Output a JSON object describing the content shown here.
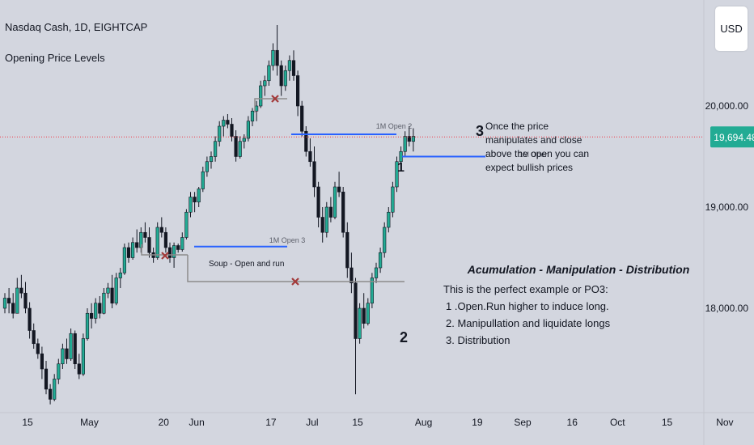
{
  "header": {
    "title": "Nasdaq Cash, 1D, EIGHTCAP",
    "indicator": "Opening Price Levels",
    "currency": "USD"
  },
  "colors": {
    "up": "#22ab94",
    "down": "#131722",
    "level": "#2962ff",
    "pivot": "#8c8c8c",
    "cross": "#a33a3a",
    "price_line": "#f23645",
    "price_badge": "#22ab94",
    "text": "#131722"
  },
  "chart_data": {
    "type": "candlestick",
    "title": "Nasdaq Cash, 1D, EIGHTCAP",
    "ylim": [
      17000,
      20800
    ],
    "y_ticks": [
      {
        "v": 20000,
        "label": "20,000.00"
      },
      {
        "v": 19000,
        "label": "19,000.00"
      },
      {
        "v": 18000,
        "label": "18,000.00"
      }
    ],
    "x_ticks": [
      {
        "i": 0,
        "label": "15"
      },
      {
        "i": 15,
        "label": "May"
      },
      {
        "i": 33,
        "label": "20"
      },
      {
        "i": 41,
        "label": "Jun"
      },
      {
        "i": 59,
        "label": "17"
      },
      {
        "i": 69,
        "label": "Jul"
      },
      {
        "i": 80,
        "label": "15"
      },
      {
        "i": 96,
        "label": "Aug"
      },
      {
        "i": 109,
        "label": "19"
      },
      {
        "i": 120,
        "label": "Sep"
      },
      {
        "i": 132,
        "label": "16"
      },
      {
        "i": 143,
        "label": "Oct"
      },
      {
        "i": 155,
        "label": "15"
      },
      {
        "i": 169,
        "label": "Nov"
      }
    ],
    "last_price": {
      "value": 19694.48,
      "label": "19,694.48"
    },
    "ohlc": [
      [
        18000,
        18150,
        17950,
        18100
      ],
      [
        18100,
        18200,
        17950,
        18050
      ],
      [
        18050,
        18150,
        17900,
        17950
      ],
      [
        17950,
        18300,
        17950,
        18200
      ],
      [
        18200,
        18330,
        18100,
        18150
      ],
      [
        18150,
        18260,
        17950,
        18000
      ],
      [
        18000,
        18060,
        17700,
        17780
      ],
      [
        17780,
        17850,
        17600,
        17650
      ],
      [
        17650,
        17700,
        17500,
        17550
      ],
      [
        17550,
        17620,
        17300,
        17400
      ],
      [
        17400,
        17480,
        17150,
        17200
      ],
      [
        17200,
        17250,
        17050,
        17100
      ],
      [
        17100,
        17350,
        17080,
        17300
      ],
      [
        17300,
        17500,
        17250,
        17450
      ],
      [
        17450,
        17650,
        17400,
        17600
      ],
      [
        17600,
        17700,
        17450,
        17500
      ],
      [
        17500,
        17800,
        17480,
        17750
      ],
      [
        17750,
        17780,
        17400,
        17450
      ],
      [
        17450,
        17550,
        17300,
        17350
      ],
      [
        17350,
        17750,
        17330,
        17700
      ],
      [
        17700,
        18000,
        17680,
        17950
      ],
      [
        17950,
        18050,
        17800,
        17900
      ],
      [
        17900,
        18100,
        17850,
        18050
      ],
      [
        18050,
        18120,
        17900,
        17950
      ],
      [
        17950,
        18200,
        17940,
        18150
      ],
      [
        18150,
        18250,
        18100,
        18200
      ],
      [
        18200,
        18330,
        18000,
        18050
      ],
      [
        18050,
        18350,
        18030,
        18300
      ],
      [
        18300,
        18400,
        18200,
        18350
      ],
      [
        18350,
        18640,
        18330,
        18600
      ],
      [
        18600,
        18650,
        18450,
        18500
      ],
      [
        18500,
        18700,
        18480,
        18650
      ],
      [
        18650,
        18780,
        18550,
        18600
      ],
      [
        18600,
        18800,
        18550,
        18750
      ],
      [
        18750,
        18850,
        18650,
        18700
      ],
      [
        18700,
        18800,
        18500,
        18550
      ],
      [
        18550,
        18600,
        18450,
        18500
      ],
      [
        18500,
        18850,
        18480,
        18800
      ],
      [
        18800,
        18900,
        18700,
        18750
      ],
      [
        18750,
        18800,
        18550,
        18600
      ],
      [
        18600,
        18650,
        18450,
        18500
      ],
      [
        18500,
        18650,
        18400,
        18620
      ],
      [
        18620,
        18640,
        18550,
        18580
      ],
      [
        18580,
        18750,
        18560,
        18700
      ],
      [
        18700,
        18980,
        18680,
        18950
      ],
      [
        18950,
        19150,
        18900,
        19100
      ],
      [
        19100,
        19150,
        18950,
        19050
      ],
      [
        19050,
        19200,
        19000,
        19180
      ],
      [
        19180,
        19400,
        19150,
        19350
      ],
      [
        19350,
        19500,
        19300,
        19450
      ],
      [
        19450,
        19550,
        19380,
        19500
      ],
      [
        19500,
        19700,
        19450,
        19650
      ],
      [
        19650,
        19850,
        19600,
        19800
      ],
      [
        19800,
        19900,
        19700,
        19860
      ],
      [
        19860,
        19920,
        19780,
        19820
      ],
      [
        19820,
        19880,
        19650,
        19700
      ],
      [
        19700,
        19760,
        19450,
        19500
      ],
      [
        19500,
        19700,
        19480,
        19650
      ],
      [
        19650,
        19720,
        19580,
        19680
      ],
      [
        19680,
        19900,
        19650,
        19850
      ],
      [
        19850,
        19980,
        19800,
        19950
      ],
      [
        19950,
        20050,
        19850,
        20000
      ],
      [
        20000,
        20250,
        19980,
        20200
      ],
      [
        20200,
        20300,
        20100,
        20250
      ],
      [
        20250,
        20450,
        20200,
        20400
      ],
      [
        20400,
        20620,
        20350,
        20550
      ],
      [
        20550,
        20800,
        20300,
        20400
      ],
      [
        20400,
        20450,
        20100,
        20200
      ],
      [
        20200,
        20400,
        20150,
        20350
      ],
      [
        20350,
        20500,
        20250,
        20450
      ],
      [
        20450,
        20550,
        20250,
        20300
      ],
      [
        20300,
        20350,
        19900,
        20000
      ],
      [
        20000,
        20050,
        19700,
        19750
      ],
      [
        19750,
        19800,
        19500,
        19550
      ],
      [
        19550,
        19680,
        19400,
        19450
      ],
      [
        19450,
        19600,
        19100,
        19200
      ],
      [
        19200,
        19250,
        18800,
        18900
      ],
      [
        18900,
        19000,
        18650,
        18750
      ],
      [
        18750,
        19050,
        18700,
        19000
      ],
      [
        19000,
        19100,
        18850,
        18900
      ],
      [
        18900,
        19250,
        18880,
        19200
      ],
      [
        19200,
        19350,
        19100,
        19150
      ],
      [
        19150,
        19200,
        18700,
        18750
      ],
      [
        18750,
        18850,
        18300,
        18400
      ],
      [
        18400,
        18550,
        18150,
        18250
      ],
      [
        18250,
        18300,
        17150,
        17700
      ],
      [
        17700,
        18050,
        17650,
        18000
      ],
      [
        18000,
        18150,
        17800,
        17850
      ],
      [
        17850,
        18100,
        17830,
        18050
      ],
      [
        18050,
        18350,
        18000,
        18300
      ],
      [
        18300,
        18450,
        18250,
        18400
      ],
      [
        18400,
        18600,
        18350,
        18550
      ],
      [
        18550,
        18850,
        18500,
        18800
      ],
      [
        18800,
        19000,
        18750,
        18950
      ],
      [
        18950,
        19250,
        18900,
        19200
      ],
      [
        19200,
        19500,
        19150,
        19450
      ],
      [
        19450,
        19600,
        19400,
        19550
      ],
      [
        19550,
        19750,
        19500,
        19700
      ],
      [
        19700,
        19800,
        19600,
        19650
      ],
      [
        19650,
        19780,
        19550,
        19700
      ]
    ],
    "annotations": [
      {
        "text": "1M Open 2"
      },
      {
        "text": "1M Open 3"
      },
      {
        "text": "1M Open"
      },
      {
        "text": "Soup - Open and run"
      },
      {
        "text": "1"
      },
      {
        "text": "2"
      },
      {
        "text": "3"
      }
    ],
    "note1": [
      "Once the price",
      "manipulates and close",
      "above the open you can",
      "expect bullish prices"
    ],
    "note2_title": "Acumulation - Manipulation - Distribution",
    "note2_lines": [
      "This is the perfect example or PO3:",
      "1 .Open.Run higher to induce long.",
      "2. Manipullation and liquidate longs",
      "3. Distribution"
    ]
  }
}
